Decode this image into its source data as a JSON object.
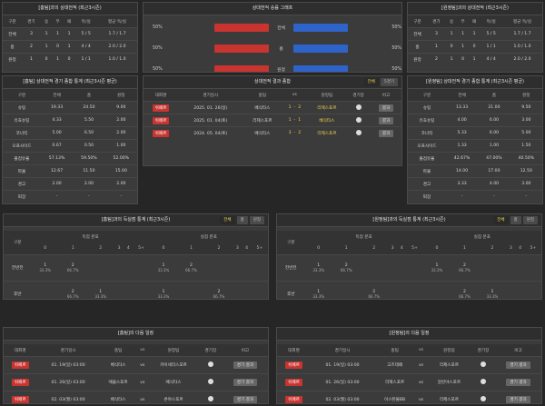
{
  "h2h_home": {
    "title": "[홈팀]과의 상대전적 (최근3시즌)",
    "header": [
      "구분",
      "경기",
      "승",
      "무",
      "패",
      "득/실",
      "평균 득/실"
    ],
    "rows": [
      [
        "전체",
        "3",
        "1",
        "1",
        "1",
        "5 / 5",
        "1.7 / 1.7"
      ],
      [
        "홈",
        "2",
        "1",
        "0",
        "1",
        "4 / 4",
        "2.0 / 2.0"
      ],
      [
        "원정",
        "1",
        "0",
        "1",
        "0",
        "1 / 1",
        "1.0 / 1.0"
      ]
    ]
  },
  "graph": {
    "title": "상대전적 승률 그래프",
    "rows": [
      {
        "label": "전체",
        "home": 50,
        "home_label": "50%",
        "away": 50,
        "away_label": "50%"
      },
      {
        "label": "홈",
        "home": 50,
        "home_label": "50%",
        "away": 50,
        "away_label": "50%"
      },
      {
        "label": "원정",
        "home": 50,
        "home_label": "50%",
        "away": 50,
        "away_label": "50%"
      }
    ]
  },
  "h2h_away": {
    "title": "[원정팀]과의 상대전적 (최근3시즌)",
    "header": [
      "구분",
      "경기",
      "승",
      "무",
      "패",
      "득/실",
      "평균 득/실"
    ],
    "rows": [
      [
        "전체",
        "3",
        "1",
        "1",
        "1",
        "5 / 5",
        "1.7 / 1.7"
      ],
      [
        "홈",
        "1",
        "0",
        "1",
        "0",
        "1 / 1",
        "1.0 / 1.0"
      ],
      [
        "원정",
        "2",
        "1",
        "0",
        "1",
        "4 / 4",
        "2.0 / 2.0"
      ]
    ]
  },
  "stats_home": {
    "title": "[홈팀] 상대전적 경기 종합 통계 (최근3시즌 평균)",
    "header": [
      "구분",
      "전체",
      "홈",
      "원정"
    ],
    "rows": [
      [
        "슈팅",
        "19.33",
        "24.50",
        "9.00"
      ],
      [
        "유효슈팅",
        "4.33",
        "5.50",
        "2.00"
      ],
      [
        "코너킥",
        "5.00",
        "6.50",
        "2.00"
      ],
      [
        "오프사이드",
        "0.67",
        "0.50",
        "1.00"
      ],
      [
        "볼점유율",
        "57.13%",
        "59.50%",
        "52.00%"
      ],
      [
        "파울",
        "12.67",
        "11.50",
        "15.00"
      ],
      [
        "경고",
        "2.00",
        "2.00",
        "2.00"
      ],
      [
        "퇴장",
        "-",
        "-",
        "-"
      ]
    ]
  },
  "results": {
    "title": "상대전적 결과 종합",
    "tabs": [
      "전체",
      "5경기"
    ],
    "header": [
      "대회명",
      "경기일시",
      "홈팀",
      "vs",
      "원정팀",
      "경기장",
      "비고"
    ],
    "score_sep": "-",
    "rows": [
      {
        "league": "쉬페르",
        "date": "2025. 01. 26(일)",
        "home": "베식타스",
        "home_score": 1,
        "away_score": 2,
        "away": "리제스포르",
        "button": "결과"
      },
      {
        "league": "쉬페르",
        "date": "2025. 01. 04(토)",
        "home": "리제스포르",
        "home_score": 1,
        "away_score": 1,
        "away": "베식타스",
        "button": "결과"
      },
      {
        "league": "쉬페르",
        "date": "2024. 05. 04(토)",
        "home": "베식타스",
        "home_score": 3,
        "away_score": 2,
        "away": "리제스포르",
        "button": "결과"
      }
    ]
  },
  "stats_away": {
    "title": "[원정팀] 상대전적 경기 종합 통계 (최근3시즌 평균)",
    "header": [
      "구분",
      "전체",
      "홈",
      "원정"
    ],
    "rows": [
      [
        "슈팅",
        "13.33",
        "21.00",
        "9.50"
      ],
      [
        "유효슈팅",
        "4.00",
        "6.00",
        "3.00"
      ],
      [
        "코너킥",
        "5.33",
        "6.00",
        "5.00"
      ],
      [
        "오프사이드",
        "1.33",
        "1.00",
        "1.50"
      ],
      [
        "볼점유율",
        "42.67%",
        "47.00%",
        "40.50%"
      ],
      [
        "파울",
        "14.00",
        "17.00",
        "12.50"
      ],
      [
        "경고",
        "3.33",
        "4.00",
        "3.00"
      ],
      [
        "퇴장",
        "-",
        "-",
        "-"
      ]
    ]
  },
  "goals_home": {
    "title": "[홈팀]과의 득실점 통계 (최근3시즌)",
    "tabs": [
      "전체",
      "홈",
      "원정"
    ],
    "first_col": "구분",
    "scored_label": "득점 분포",
    "conceded_label": "실점 분포",
    "buckets": [
      "0",
      "1",
      "2",
      "3",
      "4",
      "5+"
    ],
    "rows": [
      {
        "label": "전반전",
        "scored": [
          [
            "1",
            "33.3%"
          ],
          [
            "2",
            "66.7%"
          ],
          null,
          null,
          null,
          null
        ],
        "conceded": [
          [
            "1",
            "33.3%"
          ],
          [
            "2",
            "66.7%"
          ],
          null,
          null,
          null,
          null
        ]
      },
      {
        "label": "후반",
        "scored": [
          null,
          [
            "2",
            "66.7%"
          ],
          [
            "1",
            "33.3%"
          ],
          null,
          null,
          null
        ],
        "conceded": [
          [
            "1",
            "33.3%"
          ],
          null,
          [
            "2",
            "66.7%"
          ],
          null,
          null,
          null
        ]
      }
    ]
  },
  "goals_away": {
    "title": "[원정팀]과의 득실점 통계 (최근3시즌)",
    "tabs": [
      "전체",
      "홈",
      "원정"
    ],
    "first_col": "구분",
    "scored_label": "득점 분포",
    "conceded_label": "실점 분포",
    "buckets": [
      "0",
      "1",
      "2",
      "3",
      "4",
      "5+"
    ],
    "rows": [
      {
        "label": "전반전",
        "scored": [
          [
            "1",
            "33.3%"
          ],
          [
            "2",
            "66.7%"
          ],
          null,
          null,
          null,
          null
        ],
        "conceded": [
          [
            "1",
            "33.3%"
          ],
          [
            "2",
            "66.7%"
          ],
          null,
          null,
          null,
          null
        ]
      },
      {
        "label": "후반",
        "scored": [
          [
            "1",
            "33.3%"
          ],
          null,
          [
            "2",
            "66.7%"
          ],
          null,
          null,
          null
        ],
        "conceded": [
          null,
          [
            "2",
            "66.7%"
          ],
          [
            "1",
            "33.3%"
          ],
          null,
          null,
          null
        ]
      }
    ]
  },
  "schedule_home": {
    "title": "[홈팀]의 다음 일정",
    "header": [
      "대회명",
      "경기일시",
      "홈팀",
      "vs",
      "원정팀",
      "경기장",
      "비고"
    ],
    "vs": "vs",
    "rows": [
      {
        "league": "쉬페르",
        "date": "01. 19(일) 03:00",
        "home": "베식타스",
        "away": "카이세리스포르",
        "button": "경기 결과"
      },
      {
        "league": "쉬페르",
        "date": "01. 26(일) 03:00",
        "home": "에윱스포르",
        "away": "베식타스",
        "button": "경기 결과"
      },
      {
        "league": "쉬페르",
        "date": "02. 03(월) 03:00",
        "home": "베식타스",
        "away": "콘야스포르",
        "button": "경기 결과"
      }
    ]
  },
  "schedule_away": {
    "title": "[원정팀]의 다음 일정",
    "header": [
      "대회명",
      "경기일시",
      "홈팀",
      "vs",
      "원정팀",
      "경기장",
      "비고"
    ],
    "vs": "vs",
    "rows": [
      {
        "league": "쉬페르",
        "date": "01. 19(일) 03:00",
        "home": "고즈테페",
        "away": "리제스포르",
        "button": "경기 결과"
      },
      {
        "league": "쉬페르",
        "date": "01. 26(일) 03:00",
        "home": "리제스포르",
        "away": "알란야스포르",
        "button": "경기 결과"
      },
      {
        "league": "쉬페르",
        "date": "02. 03(월) 03:00",
        "home": "이스탄불BB",
        "away": "리제스포르",
        "button": "경기 결과"
      }
    ]
  }
}
